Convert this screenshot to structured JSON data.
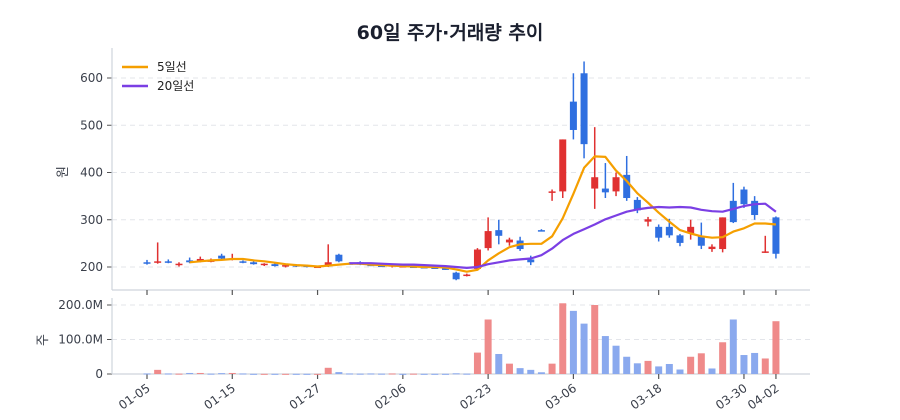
{
  "title": "60일 주가·거래량 추이",
  "colors": {
    "up": "#e03131",
    "down": "#2f6fe0",
    "up_volume": "#ef8a8a",
    "down_volume": "#8aa9ee",
    "ma5": "#f59f00",
    "ma20": "#7b3fe4",
    "grid": "#e3e5ea",
    "axis": "#cfd4dc"
  },
  "legend": [
    {
      "label": "5일선",
      "color": "#f59f00"
    },
    {
      "label": "20일선",
      "color": "#7b3fe4"
    }
  ],
  "chart_data": [
    {
      "type": "candlestick",
      "title": "60일 주가·거래량 추이",
      "ylabel": "원",
      "ylim": [
        160,
        660
      ],
      "yticks": [
        200,
        300,
        400,
        500,
        600
      ],
      "grid": true,
      "legend_position": "top-left",
      "xtick_labels": [
        "01-05",
        "01-15",
        "01-27",
        "02-06",
        "02-23",
        "03-06",
        "03-18",
        "03-30",
        "04-02"
      ],
      "xtick_indices": [
        0,
        8,
        16,
        24,
        32,
        40,
        48,
        56,
        59
      ],
      "ohlc": [
        [
          210,
          215,
          205,
          208
        ],
        [
          209,
          252,
          207,
          212
        ],
        [
          212,
          216,
          208,
          209
        ],
        [
          204,
          210,
          201,
          207
        ],
        [
          214,
          220,
          208,
          210
        ],
        [
          212,
          222,
          210,
          217
        ],
        [
          213,
          218,
          210,
          214
        ],
        [
          224,
          228,
          216,
          218
        ],
        [
          216,
          228,
          214,
          218
        ],
        [
          212,
          214,
          208,
          209
        ],
        [
          210,
          212,
          205,
          206
        ],
        [
          205,
          208,
          202,
          207
        ],
        [
          206,
          208,
          201,
          202
        ],
        [
          202,
          205,
          199,
          204
        ],
        [
          204,
          206,
          200,
          201
        ],
        [
          203,
          205,
          199,
          200
        ],
        [
          200,
          203,
          198,
          201
        ],
        [
          203,
          248,
          200,
          210
        ],
        [
          226,
          228,
          210,
          212
        ],
        [
          208,
          210,
          205,
          206
        ],
        [
          210,
          212,
          204,
          205
        ],
        [
          205,
          208,
          202,
          204
        ],
        [
          203,
          207,
          200,
          201
        ],
        [
          203,
          206,
          199,
          204
        ],
        [
          201,
          204,
          199,
          202
        ],
        [
          201,
          203,
          198,
          200
        ],
        [
          200,
          203,
          198,
          199
        ],
        [
          199,
          202,
          197,
          198
        ],
        [
          197,
          200,
          194,
          196
        ],
        [
          188,
          190,
          172,
          174
        ],
        [
          182,
          186,
          180,
          184
        ],
        [
          196,
          240,
          193,
          237
        ],
        [
          240,
          305,
          235,
          276
        ],
        [
          278,
          300,
          248,
          266
        ],
        [
          252,
          262,
          245,
          258
        ],
        [
          256,
          264,
          234,
          238
        ],
        [
          216,
          224,
          204,
          210
        ],
        [
          278,
          280,
          276,
          277
        ],
        [
          357,
          364,
          340,
          360
        ],
        [
          360,
          470,
          346,
          470
        ],
        [
          550,
          610,
          470,
          490
        ],
        [
          610,
          635,
          430,
          460
        ],
        [
          366,
          496,
          323,
          390
        ],
        [
          366,
          420,
          346,
          358
        ],
        [
          360,
          400,
          350,
          390
        ],
        [
          395,
          435,
          340,
          346
        ],
        [
          342,
          348,
          314,
          320
        ],
        [
          296,
          306,
          286,
          301
        ],
        [
          285,
          290,
          254,
          262
        ],
        [
          285,
          302,
          262,
          267
        ],
        [
          267,
          270,
          244,
          251
        ],
        [
          271,
          300,
          258,
          285
        ],
        [
          265,
          294,
          238,
          245
        ],
        [
          238,
          248,
          232,
          243
        ],
        [
          238,
          305,
          231,
          305
        ],
        [
          340,
          378,
          293,
          295
        ],
        [
          364,
          370,
          325,
          333
        ],
        [
          340,
          350,
          300,
          310
        ],
        [
          232,
          266,
          230,
          233
        ],
        [
          305,
          307,
          218,
          228
        ]
      ],
      "series": [
        {
          "name": "5일선",
          "values": [
            null,
            null,
            null,
            null,
            210,
            212,
            214,
            215,
            217,
            217,
            214,
            212,
            209,
            206,
            204,
            203,
            201,
            203,
            205,
            207,
            207,
            205,
            204,
            203,
            202,
            201,
            200,
            200,
            199,
            195,
            190,
            194,
            214,
            229,
            242,
            248,
            249,
            249,
            265,
            303,
            355,
            410,
            434,
            433,
            404,
            382,
            356,
            336,
            315,
            296,
            278,
            271,
            265,
            262,
            263,
            275,
            282,
            292,
            292,
            290
          ]
        },
        {
          "name": "20일선",
          "values": [
            null,
            null,
            null,
            null,
            null,
            null,
            null,
            null,
            null,
            null,
            null,
            null,
            null,
            null,
            null,
            null,
            null,
            null,
            null,
            208,
            208,
            208,
            207,
            206,
            205,
            205,
            204,
            203,
            202,
            200,
            198,
            200,
            206,
            210,
            214,
            216,
            218,
            225,
            239,
            257,
            270,
            280,
            290,
            301,
            309,
            317,
            322,
            325,
            327,
            326,
            327,
            326,
            321,
            318,
            317,
            323,
            329,
            333,
            334,
            317
          ]
        }
      ]
    },
    {
      "type": "bar",
      "ylabel": "주",
      "ylim": [
        0,
        210000000
      ],
      "yticks": [
        0,
        100000000,
        200000000
      ],
      "ytick_labels": [
        "0",
        "100.0M",
        "200.0M"
      ],
      "grid": true,
      "values": [
        1500000,
        12000000,
        1500000,
        1000000,
        3000000,
        3000000,
        1000000,
        2500000,
        3000000,
        1500000,
        500000,
        500000,
        500000,
        500000,
        500000,
        500000,
        500000,
        18000000,
        5500000,
        1500000,
        1000000,
        1500000,
        1000000,
        1500000,
        500000,
        1000000,
        500000,
        500000,
        500000,
        2000000,
        1000000,
        62000000,
        158000000,
        58000000,
        30000000,
        17000000,
        12000000,
        5000000,
        30000000,
        205000000,
        183000000,
        146000000,
        200000000,
        110000000,
        82000000,
        50000000,
        31000000,
        38000000,
        22000000,
        29000000,
        13000000,
        50000000,
        60000000,
        16000000,
        92000000,
        158000000,
        55000000,
        61000000,
        45000000,
        153000000
      ],
      "direction": [
        "down",
        "up",
        "down",
        "up",
        "down",
        "up",
        "down",
        "down",
        "up",
        "down",
        "down",
        "up",
        "down",
        "up",
        "down",
        "down",
        "up",
        "up",
        "down",
        "down",
        "down",
        "down",
        "down",
        "up",
        "down",
        "up",
        "down",
        "down",
        "down",
        "down",
        "down",
        "up",
        "up",
        "down",
        "up",
        "down",
        "down",
        "down",
        "up",
        "up",
        "down",
        "down",
        "up",
        "down",
        "down",
        "down",
        "down",
        "up",
        "down",
        "down",
        "down",
        "up",
        "up",
        "down",
        "up",
        "down",
        "down",
        "down",
        "up",
        "up"
      ]
    }
  ],
  "axes": {
    "price_label": "원",
    "volume_label": "주",
    "price_ticks": [
      "200",
      "300",
      "400",
      "500",
      "600"
    ],
    "volume_ticks": [
      "0",
      "100.0M",
      "200.0M"
    ],
    "x_ticks": [
      "01-05",
      "01-15",
      "01-27",
      "02-06",
      "02-23",
      "03-06",
      "03-18",
      "03-30",
      "04-02"
    ]
  }
}
